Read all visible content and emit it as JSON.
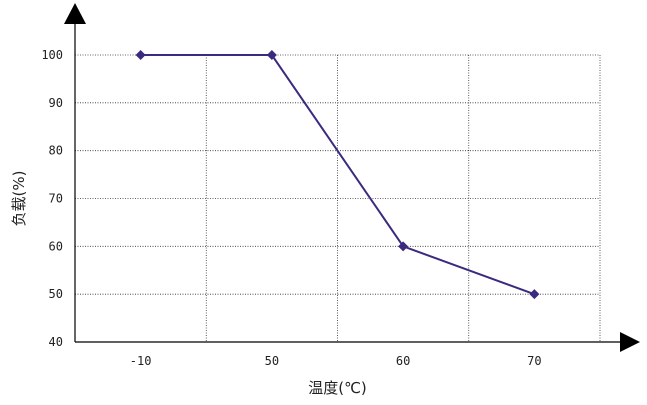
{
  "chart_data": {
    "type": "line",
    "title": "",
    "xlabel": "温度(℃)",
    "ylabel": "负载(%)",
    "categories": [
      "-10",
      "50",
      "60",
      "70"
    ],
    "values": [
      100,
      100,
      60,
      50
    ],
    "ylim": [
      40,
      100
    ],
    "yticks": [
      40,
      50,
      60,
      70,
      80,
      90,
      100
    ],
    "grid": true,
    "colors": {
      "line": "#3c2a7f",
      "marker": "#3c2a7f",
      "axis": "#000000",
      "grid": "#333333"
    }
  }
}
